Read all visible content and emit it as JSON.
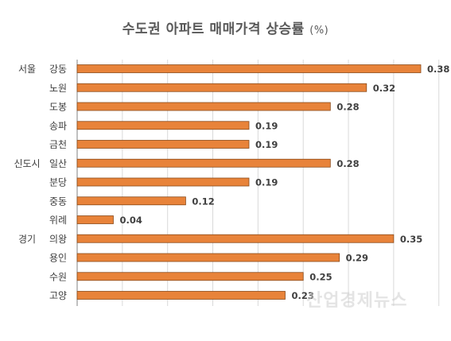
{
  "title": "수도권 아파트 매매가격 상승률",
  "title_unit": "(%)",
  "watermark": "산업경제뉴스",
  "colors": {
    "bar": "#E8833A",
    "bar_stroke": "#8A4A1A",
    "grid": "#D9D9D9",
    "axis": "#808080"
  },
  "chart_data": {
    "type": "bar",
    "orientation": "horizontal",
    "title": "수도권 아파트 매매가격 상승률",
    "unit": "(%)",
    "groups": [
      {
        "name": "서울",
        "start": 0
      },
      {
        "name": "신도시",
        "start": 5
      },
      {
        "name": "경기",
        "start": 9
      }
    ],
    "categories": [
      "강동",
      "노원",
      "도봉",
      "송파",
      "금천",
      "일산",
      "분당",
      "중동",
      "위례",
      "의왕",
      "용인",
      "수원",
      "고양"
    ],
    "values": [
      0.38,
      0.32,
      0.28,
      0.19,
      0.19,
      0.28,
      0.19,
      0.12,
      0.04,
      0.35,
      0.29,
      0.25,
      0.23
    ],
    "value_labels": [
      "0.38",
      "0.32",
      "0.28",
      "0.19",
      "0.19",
      "0.28",
      "0.19",
      "0.12",
      "0.04",
      "0.35",
      "0.29",
      "0.25",
      "0.23"
    ],
    "xlim": [
      0,
      0.4
    ],
    "grid": true,
    "legend": "none"
  }
}
